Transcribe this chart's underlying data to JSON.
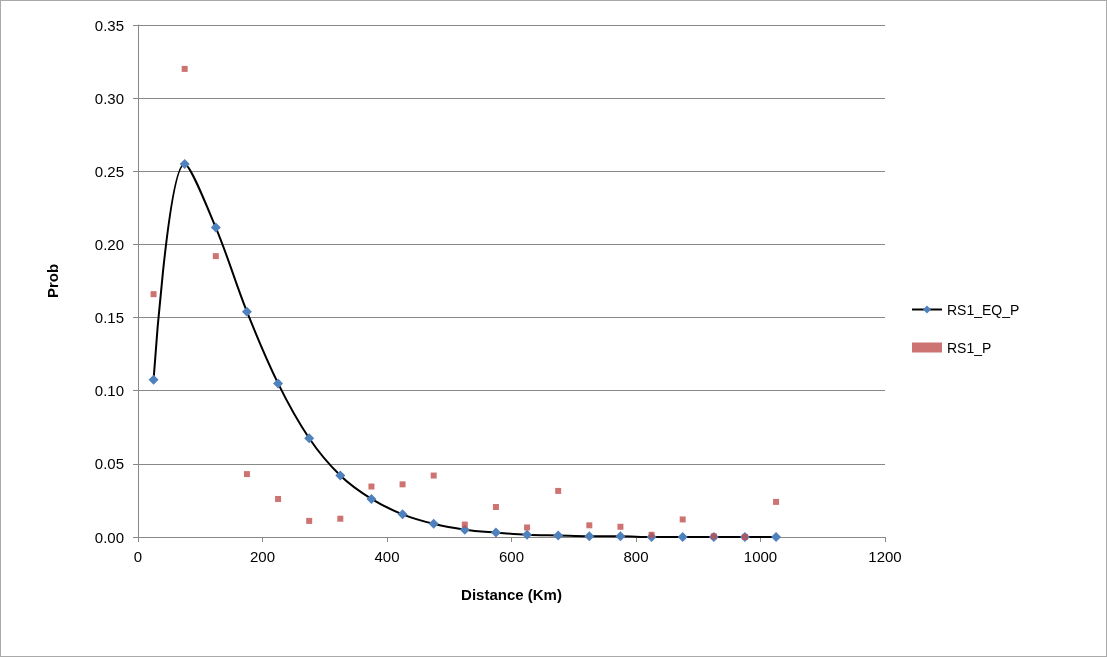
{
  "chart_data": {
    "type": "scatter",
    "xlabel": "Distance (Km)",
    "ylabel": "Prob",
    "xlim": [
      0,
      1200
    ],
    "xticks": [
      0,
      200,
      400,
      600,
      800,
      1000,
      1200
    ],
    "ylim": [
      0,
      0.35
    ],
    "yticks": [
      {
        "value": 0,
        "label": "0.00"
      },
      {
        "value": 0.05,
        "label": "0.05"
      },
      {
        "value": 0.1,
        "label": "0.10"
      },
      {
        "value": 0.15,
        "label": "0.15"
      },
      {
        "value": 0.2,
        "label": "0.20"
      },
      {
        "value": 0.25,
        "label": "0.25"
      },
      {
        "value": 0.3,
        "label": "0.30"
      },
      {
        "value": 0.35,
        "label": "0.35"
      }
    ],
    "grid": "y",
    "legend": "right",
    "x": [
      25,
      75,
      125,
      175,
      225,
      275,
      325,
      375,
      425,
      475,
      525,
      575,
      625,
      675,
      725,
      775,
      825,
      875,
      925,
      975,
      1025
    ],
    "series": [
      {
        "name": "RS1_EQ_P",
        "type": "line",
        "marker": "diamond",
        "line_style": "solid",
        "color": "#4f81bd",
        "values": [
          0.1075,
          0.255,
          0.2115,
          0.154,
          0.105,
          0.0675,
          0.042,
          0.026,
          0.0155,
          0.009,
          0.005,
          0.003,
          0.0015,
          0.001,
          0.0005,
          0.0005,
          0,
          0,
          0,
          0,
          0
        ]
      },
      {
        "name": "RS1_P",
        "marker": "square",
        "color": "#c0504d",
        "values": [
          0.166,
          0.32,
          0.192,
          0.043,
          0.026,
          0.011,
          0.0125,
          0.0345,
          0.036,
          0.042,
          0.0085,
          0.0205,
          0.0065,
          0.0315,
          0.008,
          0.007,
          0.0015,
          0.012,
          0.0005,
          0,
          0.024
        ]
      }
    ]
  }
}
